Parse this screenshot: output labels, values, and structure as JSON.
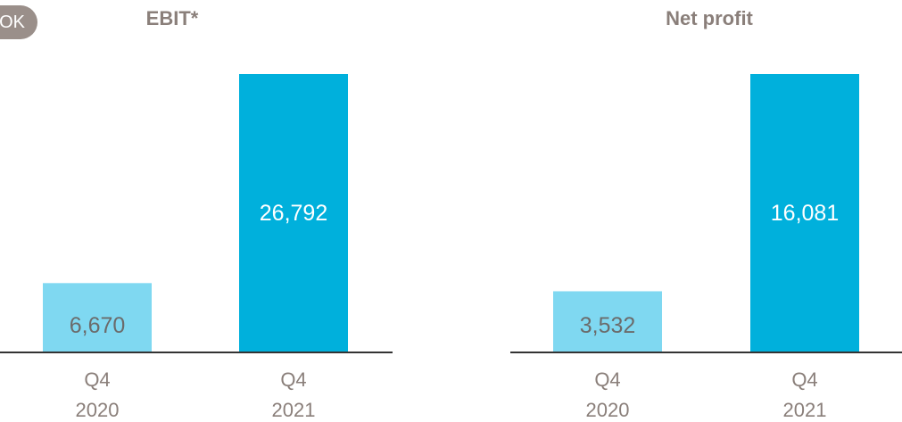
{
  "badge": {
    "label": "OK"
  },
  "colors": {
    "bar_2020": "#7fd8f1",
    "bar_2021": "#00b0dc",
    "label_2020": "#6b6b6b",
    "label_2021": "#ffffff",
    "axis": "#333333",
    "text": "#8a7f7a"
  },
  "chart_data": [
    {
      "type": "bar",
      "title": "EBIT*",
      "categories": [
        "Q4\n2020",
        "Q4\n2021"
      ],
      "values": [
        6670,
        26792
      ],
      "value_labels": [
        "6,670",
        "26,792"
      ]
    },
    {
      "type": "bar",
      "title": "Net profit",
      "categories": [
        "Q4\n2020",
        "Q4\n2021"
      ],
      "values": [
        3532,
        16081
      ],
      "value_labels": [
        "3,532",
        "16,081"
      ]
    }
  ]
}
